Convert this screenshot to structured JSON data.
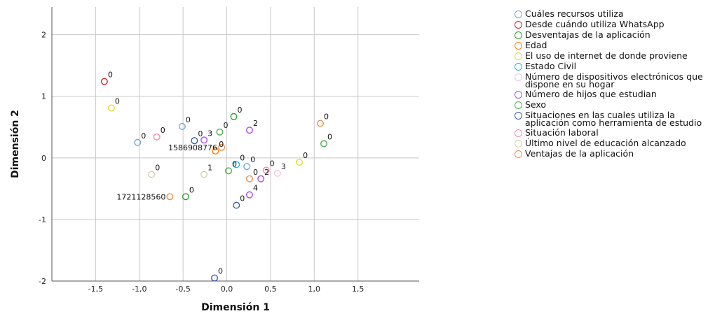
{
  "chart_data": {
    "type": "scatter",
    "xlabel": "Dimensión 1",
    "ylabel": "Dimensión 2",
    "xlim": [
      -2.0,
      2.2
    ],
    "ylim": [
      -2.0,
      2.45
    ],
    "x_ticks": [
      "-1,5",
      "-1,0",
      "-0,5",
      "0,0",
      "0,5",
      "1,0",
      "1,5"
    ],
    "x_tick_values": [
      -1.5,
      -1.0,
      -0.5,
      0.0,
      0.5,
      1.0,
      1.5
    ],
    "y_ticks": [
      "2",
      "1",
      "0",
      "-1",
      "-2"
    ],
    "y_tick_values": [
      2,
      1,
      0,
      -1,
      -2
    ],
    "grid": true,
    "legend_position": "right",
    "series": [
      {
        "name": "Cuáles recursos utiliza",
        "color": "#6fa8dc",
        "points": [
          {
            "x": -1.02,
            "y": 0.25,
            "label": "0"
          },
          {
            "x": -0.51,
            "y": 0.51,
            "label": "0"
          },
          {
            "x": 0.23,
            "y": -0.14,
            "label": "0"
          }
        ]
      },
      {
        "name": "Desde cuándo utiliza WhatsApp",
        "color": "#d62728",
        "points": [
          {
            "x": -1.4,
            "y": 1.24,
            "label": "0"
          }
        ]
      },
      {
        "name": "Desventajas de la aplicación",
        "color": "#2ca02c",
        "points": [
          {
            "x": -0.47,
            "y": -0.63,
            "label": "0"
          },
          {
            "x": 0.08,
            "y": 0.67,
            "label": "0"
          }
        ]
      },
      {
        "name": "Edad",
        "color": "#ff7f0e",
        "points": [
          {
            "x": -0.13,
            "y": 0.11,
            "label": "0"
          }
        ]
      },
      {
        "name": "El uso de internet de donde proviene",
        "color": "#e8d93a",
        "points": [
          {
            "x": -1.32,
            "y": 0.81,
            "label": "0"
          },
          {
            "x": 0.83,
            "y": -0.07,
            "label": "0"
          }
        ]
      },
      {
        "name": "Estado Civil",
        "color": "#17becf",
        "points": [
          {
            "x": 0.11,
            "y": -0.11,
            "label": "0"
          }
        ]
      },
      {
        "name": "Número de dispositivos electrónicos que dispone en su hogar",
        "color": "#f7c6d9",
        "points": [
          {
            "x": 0.58,
            "y": -0.25,
            "label": "3"
          }
        ]
      },
      {
        "name": "Número de hijos que estudian",
        "color": "#b14bdf",
        "points": [
          {
            "x": -0.26,
            "y": 0.29,
            "label": "3"
          },
          {
            "x": 0.26,
            "y": 0.45,
            "label": "2"
          },
          {
            "x": 0.26,
            "y": -0.6,
            "label": "4"
          },
          {
            "x": 0.39,
            "y": -0.34,
            "label": "2"
          }
        ]
      },
      {
        "name": "Sexo",
        "color": "#4caf50",
        "points": [
          {
            "x": -0.08,
            "y": 0.42,
            "label": "0"
          },
          {
            "x": 1.11,
            "y": 0.23,
            "label": "0"
          },
          {
            "x": 0.02,
            "y": -0.21,
            "label": "0"
          }
        ]
      },
      {
        "name": "Situaciones en las cuales utiliza la aplicación como herramienta de estudio",
        "color": "#3b5ea8",
        "points": [
          {
            "x": -0.37,
            "y": 0.28,
            "label": "0"
          },
          {
            "x": 0.11,
            "y": -0.77,
            "label": "0"
          },
          {
            "x": -0.14,
            "y": -1.95,
            "label": "0"
          }
        ]
      },
      {
        "name": "Situación laboral",
        "color": "#f48fb1",
        "points": [
          {
            "x": -0.8,
            "y": 0.34,
            "label": "0"
          },
          {
            "x": 0.45,
            "y": -0.2,
            "label": "0"
          }
        ]
      },
      {
        "name": "Último nivel de educación alcanzado",
        "color": "#d8d2a6",
        "points": [
          {
            "x": -0.86,
            "y": -0.27,
            "label": "0"
          },
          {
            "x": -0.26,
            "y": -0.27,
            "label": "1"
          }
        ]
      },
      {
        "name": "Ventajas de la aplicación",
        "color": "#e8904a",
        "points": [
          {
            "x": -0.06,
            "y": 0.17,
            "label": "1586908776"
          },
          {
            "x": -0.65,
            "y": -0.63,
            "label": "1721128560"
          },
          {
            "x": 1.07,
            "y": 0.56,
            "label": "0"
          },
          {
            "x": 0.26,
            "y": -0.34,
            "label": "0"
          }
        ]
      }
    ]
  }
}
